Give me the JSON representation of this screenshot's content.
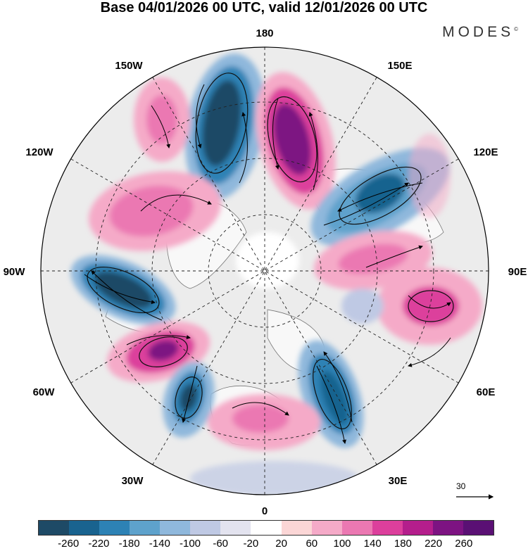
{
  "title": "Base 04/01/2026 00 UTC, valid 12/01/2026 00 UTC",
  "brand": "MODES",
  "brand_mark": "©",
  "longitude_labels": {
    "lon_180": "180",
    "lon_150e": "150E",
    "lon_120e": "120E",
    "lon_90e": "90E",
    "lon_60e": "60E",
    "lon_30e": "30E",
    "lon_0": "0",
    "lon_30w": "30W",
    "lon_60w": "60W",
    "lon_90w": "90W",
    "lon_120w": "120W",
    "lon_150w": "150W"
  },
  "reference_vector_label": "30",
  "colorbar": {
    "ticks": [
      "-260",
      "-220",
      "-180",
      "-140",
      "-100",
      "-60",
      "-20",
      "20",
      "60",
      "100",
      "140",
      "180",
      "220",
      "260"
    ],
    "colors": [
      "#1e4a66",
      "#19638f",
      "#2d82b5",
      "#5ea2cc",
      "#8fb8dc",
      "#bfc9e4",
      "#e3e3ef",
      "#ffffff",
      "#fbd6d6",
      "#f5aac8",
      "#eb78b2",
      "#dc3f9c",
      "#b41e8c",
      "#7d1382",
      "#5a1074"
    ]
  },
  "anomalies": [
    {
      "id": "a1",
      "sign": "negative",
      "value": -240
    },
    {
      "id": "a2",
      "sign": "positive",
      "value": 250
    },
    {
      "id": "a3",
      "sign": "negative",
      "value": -200
    },
    {
      "id": "a4",
      "sign": "positive",
      "value": 150
    },
    {
      "id": "a5",
      "sign": "positive",
      "value": 140
    },
    {
      "id": "a6",
      "sign": "positive",
      "value": 140
    },
    {
      "id": "a7",
      "sign": "negative",
      "value": -250
    },
    {
      "id": "a8",
      "sign": "positive",
      "value": 210
    },
    {
      "id": "a9",
      "sign": "negative",
      "value": -200
    },
    {
      "id": "a10",
      "sign": "positive",
      "value": 170
    },
    {
      "id": "a11",
      "sign": "negative",
      "value": -210
    },
    {
      "id": "a12",
      "sign": "negative",
      "value": -60
    },
    {
      "id": "a13",
      "sign": "positive",
      "value": 100
    },
    {
      "id": "a14",
      "sign": "positive",
      "value": 120
    },
    {
      "id": "a15",
      "sign": "negative",
      "value": -50
    }
  ]
}
